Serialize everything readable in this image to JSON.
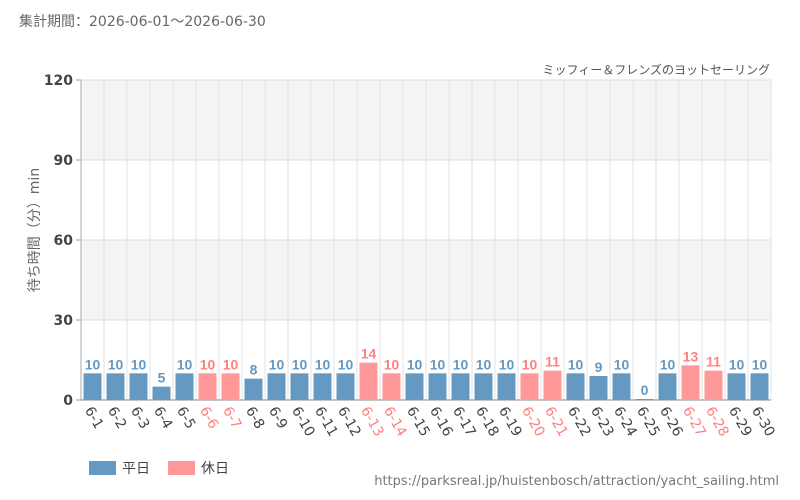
{
  "header": {
    "period": "集計期間：2026-06-01～2026-06-30"
  },
  "footer": {
    "source_url": "https://parksreal.jp/huistenbosch/attraction/yacht_sailing.html"
  },
  "legend": [
    {
      "label": "平日",
      "color": "#6699c2"
    },
    {
      "label": "休日",
      "color": "#ff9999"
    }
  ],
  "chart_data": {
    "type": "bar",
    "title": "ミッフィー＆フレンズのヨットセーリング",
    "xlabel": "",
    "ylabel": "待ち時間（分）min",
    "ylim": [
      0,
      120
    ],
    "yticks": [
      0,
      30,
      60,
      90,
      120
    ],
    "grid": true,
    "legend_position": "bottom-left",
    "categories": [
      "6-1",
      "6-2",
      "6-3",
      "6-4",
      "6-5",
      "6-6",
      "6-7",
      "6-8",
      "6-9",
      "6-10",
      "6-11",
      "6-12",
      "6-13",
      "6-14",
      "6-15",
      "6-16",
      "6-17",
      "6-18",
      "6-19",
      "6-20",
      "6-21",
      "6-22",
      "6-23",
      "6-24",
      "6-25",
      "6-26",
      "6-27",
      "6-28",
      "6-29",
      "6-30"
    ],
    "values": [
      10,
      10,
      10,
      5,
      10,
      10,
      10,
      8,
      10,
      10,
      10,
      10,
      14,
      10,
      10,
      10,
      10,
      10,
      10,
      10,
      11,
      10,
      9,
      10,
      0,
      10,
      13,
      11,
      10,
      10
    ],
    "day_type": [
      "平日",
      "平日",
      "平日",
      "平日",
      "平日",
      "休日",
      "休日",
      "平日",
      "平日",
      "平日",
      "平日",
      "平日",
      "休日",
      "休日",
      "平日",
      "平日",
      "平日",
      "平日",
      "平日",
      "休日",
      "休日",
      "平日",
      "平日",
      "平日",
      "平日",
      "平日",
      "休日",
      "休日",
      "平日",
      "平日"
    ],
    "colors": {
      "weekday": "#6699c2",
      "holiday": "#ff9999",
      "weekday_label": "#6699c2",
      "holiday_label": "#ff8080",
      "axis_label": "#444444"
    }
  }
}
